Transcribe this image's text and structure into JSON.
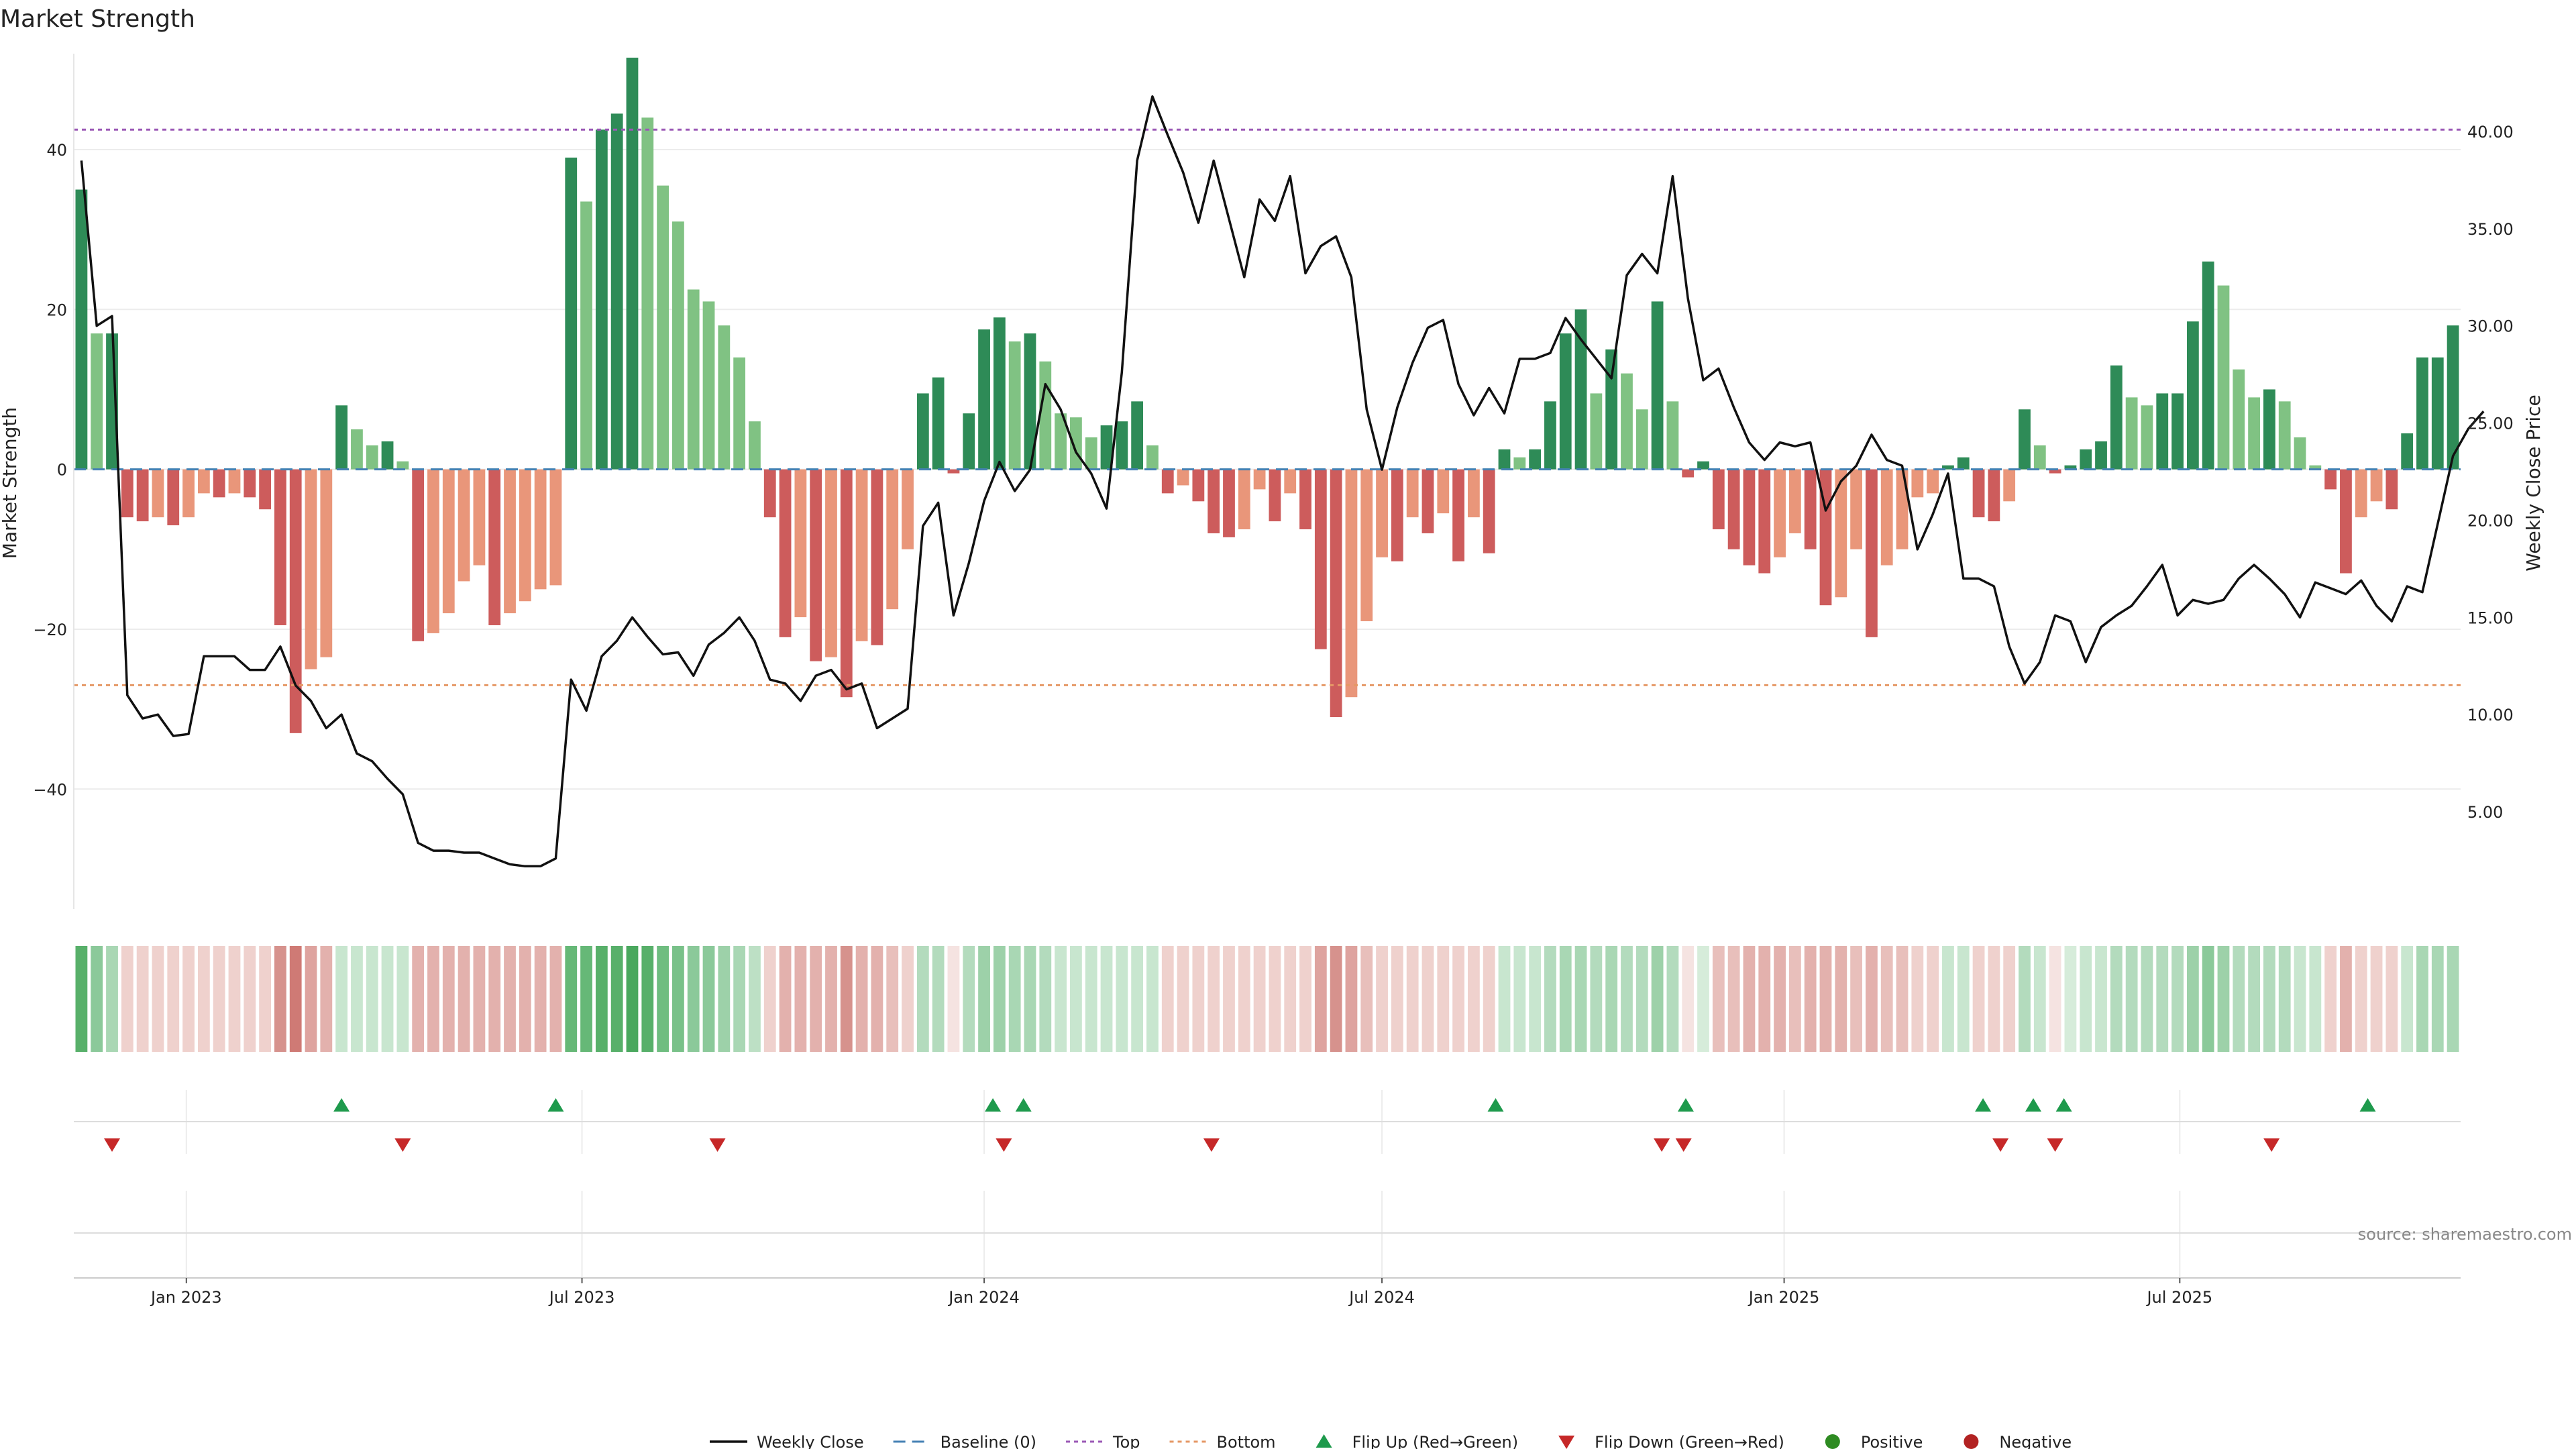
{
  "chart_data": {
    "type": "bar",
    "title": "Market Strength",
    "ylabel_left": "Market Strength",
    "ylabel_right": "Weekly Close Price",
    "source": "source: sharemaestro.com",
    "start_date": "2022-11-14",
    "step_days": 7,
    "ylim_left": [
      -55,
      52
    ],
    "ylim_right": [
      0,
      44
    ],
    "left_ticks": [
      40,
      20,
      0,
      -20,
      -40
    ],
    "left_tick_labels": [
      "40",
      "20",
      "0",
      "−20",
      "−40"
    ],
    "right_ticks": [
      40,
      35,
      30,
      25,
      20,
      15,
      10,
      5
    ],
    "right_tick_labels": [
      "40.00",
      "35.00",
      "30.00",
      "25.00",
      "20.00",
      "15.00",
      "10.00",
      "5.00"
    ],
    "x_ticks": [
      {
        "date": "2023-01-01",
        "label": "Jan 2023"
      },
      {
        "date": "2023-07-01",
        "label": "Jul 2023"
      },
      {
        "date": "2024-01-01",
        "label": "Jan 2024"
      },
      {
        "date": "2024-07-01",
        "label": "Jul 2024"
      },
      {
        "date": "2025-01-01",
        "label": "Jan 2025"
      },
      {
        "date": "2025-07-01",
        "label": "Jul 2025"
      }
    ],
    "top_level": 42.5,
    "bottom_level": -27,
    "strength": [
      35,
      17,
      17,
      -6,
      -6.5,
      -6,
      -7,
      -6,
      -3,
      -3.5,
      -3,
      -3.5,
      -5,
      -19.5,
      -33,
      -25,
      -23.5,
      8,
      5,
      3,
      3.5,
      1,
      -21.5,
      -20.5,
      -18,
      -14,
      -12,
      -19.5,
      -18,
      -16.5,
      -15,
      -14.5,
      39,
      33.5,
      42.5,
      44.5,
      51.5,
      44,
      35.5,
      31,
      22.5,
      21,
      18,
      14,
      6,
      -6,
      -21,
      -18.5,
      -24,
      -23.5,
      -28.5,
      -21.5,
      -22,
      -17.5,
      -10,
      9.5,
      11.5,
      -0.5,
      7,
      17.5,
      19,
      16,
      17,
      13.5,
      7,
      6.5,
      4,
      5.5,
      6,
      8.5,
      3,
      -3,
      -2,
      -4,
      -8,
      -8.5,
      -7.5,
      -2.5,
      -6.5,
      -3,
      -7.5,
      -22.5,
      -31,
      -28.5,
      -19,
      -11,
      -11.5,
      -6,
      -8,
      -5.5,
      -11.5,
      -6,
      -10.5,
      2.5,
      1.5,
      2.5,
      8.5,
      17,
      20,
      9.5,
      15,
      12,
      7.5,
      21,
      8.5,
      -1,
      1,
      -7.5,
      -10,
      -12,
      -13,
      -11,
      -8,
      -10,
      -17,
      -16,
      -10,
      -21,
      -12,
      -10,
      -3.5,
      -3,
      0.5,
      1.5,
      -6,
      -6.5,
      -4,
      7.5,
      3,
      -0.5,
      0.5,
      2.5,
      3.5,
      13,
      9,
      8,
      9.5,
      9.5,
      18.5,
      26,
      23,
      12.5,
      9,
      10,
      8.5,
      4,
      0.5,
      -2.5,
      -13,
      -6,
      -4,
      -5,
      4.5,
      14,
      14,
      18
    ],
    "close": [
      38.5,
      30,
      30.5,
      11,
      9.8,
      10,
      8.9,
      9,
      13,
      13,
      13,
      12.3,
      12.3,
      13.5,
      11.5,
      10.7,
      9.3,
      10,
      8,
      7.6,
      6.7,
      5.9,
      3.4,
      3,
      3,
      2.9,
      2.9,
      2.6,
      2.3,
      2.2,
      2.2,
      2.6,
      11.8,
      10.2,
      13,
      13.8,
      15,
      14,
      13.1,
      13.2,
      12,
      13.6,
      14.2,
      15,
      13.8,
      11.8,
      11.6,
      10.7,
      12,
      12.3,
      11.3,
      11.6,
      9.3,
      9.8,
      10.3,
      19.7,
      20.9,
      15.1,
      17.8,
      21,
      23,
      21.5,
      22.6,
      27,
      25.7,
      23.5,
      22.4,
      20.6,
      27.6,
      38.5,
      41.8,
      39.8,
      37.9,
      35.3,
      38.5,
      35.5,
      32.5,
      36.5,
      35.4,
      37.7,
      32.7,
      34.1,
      34.6,
      32.5,
      25.7,
      22.6,
      25.8,
      28.1,
      29.9,
      30.3,
      27,
      25.4,
      26.8,
      25.5,
      28.3,
      28.3,
      28.6,
      30.4,
      29.3,
      28.3,
      27.3,
      32.6,
      33.7,
      32.7,
      37.7,
      31.4,
      27.2,
      27.8,
      25.8,
      24,
      23.1,
      24,
      23.8,
      24,
      20.5,
      22,
      22.8,
      24.4,
      23.1,
      22.8,
      18.5,
      20.3,
      22.4,
      17,
      17,
      16.6,
      13.5,
      11.6,
      12.7,
      15.1,
      14.8,
      12.7,
      14.5,
      15.1,
      15.6,
      16.6,
      17.7,
      15.1,
      15.9,
      15.7,
      15.9,
      17,
      17.7,
      17,
      16.2,
      15,
      16.8,
      16.5,
      16.2,
      16.9,
      15.6,
      14.8,
      16.6,
      16.3,
      19.8,
      23.3,
      24.7,
      25.6
    ],
    "flip_up_dates": [
      "2023-03-13",
      "2023-06-19",
      "2024-01-05",
      "2024-01-19",
      "2024-08-22",
      "2024-11-17",
      "2025-04-02",
      "2025-04-25",
      "2025-05-09",
      "2025-09-25"
    ],
    "flip_down_dates": [
      "2022-11-28",
      "2023-04-10",
      "2023-09-01",
      "2024-01-10",
      "2024-04-14",
      "2024-11-06",
      "2024-11-16",
      "2025-04-10",
      "2025-05-05",
      "2025-08-12"
    ],
    "strip_colors": [
      "#58b06a",
      "#8bc99a",
      "#a9d7b4",
      "#efd1cd",
      "#efd1cd",
      "#efd1cd",
      "#efd1cd",
      "#efd1cd",
      "#efd1cd",
      "#efd1cd",
      "#efd1cd",
      "#efd1cd",
      "#efd1cd",
      "#d6928d",
      "#cf7a75",
      "#dea39f",
      "#e3b1ad",
      "#c8e6cf",
      "#c8e6cf",
      "#c8e6cf",
      "#c8e6cf",
      "#c8e6cf",
      "#e3b1ad",
      "#e3b1ad",
      "#e3b1ad",
      "#e3b1ad",
      "#e3b1ad",
      "#e3b1ad",
      "#e3b1ad",
      "#e3b1ad",
      "#e3b1ad",
      "#e3b1ad",
      "#66b877",
      "#66b877",
      "#58b06a",
      "#58b06a",
      "#4aa85e",
      "#58b06a",
      "#6fbd80",
      "#79c189",
      "#8bc99a",
      "#8bc99a",
      "#9dd1a9",
      "#a9d7b4",
      "#bde0c5",
      "#efd1cd",
      "#e3b1ad",
      "#e3b1ad",
      "#e3b1ad",
      "#e3b1ad",
      "#d6928d",
      "#e3b1ad",
      "#e3b1ad",
      "#e8bfbb",
      "#efd1cd",
      "#b3dbbd",
      "#b3dbbd",
      "#f5e3e1",
      "#b3dbbd",
      "#9dd1a9",
      "#9dd1a9",
      "#a9d7b4",
      "#a9d7b4",
      "#b3dbbd",
      "#c8e6cf",
      "#c8e6cf",
      "#c8e6cf",
      "#c8e6cf",
      "#c8e6cf",
      "#c8e6cf",
      "#c8e6cf",
      "#efd1cd",
      "#efd1cd",
      "#efd1cd",
      "#efd1cd",
      "#efd1cd",
      "#efd1cd",
      "#efd1cd",
      "#efd1cd",
      "#efd1cd",
      "#efd1cd",
      "#dea39f",
      "#d6928d",
      "#dea39f",
      "#e8bfbb",
      "#efd1cd",
      "#efd1cd",
      "#efd1cd",
      "#efd1cd",
      "#efd1cd",
      "#efd1cd",
      "#efd1cd",
      "#efd1cd",
      "#c8e6cf",
      "#c8e6cf",
      "#c8e6cf",
      "#b3dbbd",
      "#a9d7b4",
      "#a9d7b4",
      "#b3dbbd",
      "#a9d7b4",
      "#b3dbbd",
      "#b3dbbd",
      "#9dd1a9",
      "#b3dbbd",
      "#f5e3e1",
      "#d6ecda",
      "#e8bfbb",
      "#e8bfbb",
      "#e3b1ad",
      "#e3b1ad",
      "#e3b1ad",
      "#e8bfbb",
      "#e3b1ad",
      "#e3b1ad",
      "#e3b1ad",
      "#e8bfbb",
      "#e3b1ad",
      "#e8bfbb",
      "#e8bfbb",
      "#efd1cd",
      "#efd1cd",
      "#c8e6cf",
      "#c8e6cf",
      "#efd1cd",
      "#efd1cd",
      "#efd1cd",
      "#b3dbbd",
      "#c8e6cf",
      "#f5e3e1",
      "#d6ecda",
      "#c8e6cf",
      "#c8e6cf",
      "#b3dbbd",
      "#b3dbbd",
      "#b3dbbd",
      "#b3dbbd",
      "#b3dbbd",
      "#9dd1a9",
      "#8bc99a",
      "#9dd1a9",
      "#b3dbbd",
      "#b3dbbd",
      "#b3dbbd",
      "#b3dbbd",
      "#c8e6cf",
      "#c8e6cf",
      "#efd1cd",
      "#e3b1ad",
      "#efd1cd",
      "#efd1cd",
      "#efd1cd",
      "#c8e6cf",
      "#a9d7b4",
      "#a9d7b4",
      "#a9d7b4"
    ],
    "colors": {
      "pos_strong": "#2e8b57",
      "pos_weak": "#80c283",
      "neg_strong": "#cd5c5c",
      "neg_weak": "#e9967a",
      "close_line": "#111111",
      "baseline": "#4682b4",
      "top": "#9b59b6",
      "bottom": "#e59866",
      "flip_up": "#1e9a4c",
      "flip_down": "#c62828",
      "positive_dot": "#2e8b22",
      "negative_dot": "#b22222",
      "grid": "#ececec"
    },
    "legend": [
      {
        "key": "close",
        "label": "Weekly Close"
      },
      {
        "key": "baseline",
        "label": "Baseline (0)"
      },
      {
        "key": "top",
        "label": "Top"
      },
      {
        "key": "bottom",
        "label": "Bottom"
      },
      {
        "key": "flip_up",
        "label": "Flip Up (Red→Green)"
      },
      {
        "key": "flip_down",
        "label": "Flip Down (Green→Red)"
      },
      {
        "key": "positive",
        "label": "Positive"
      },
      {
        "key": "negative",
        "label": "Negative"
      }
    ]
  }
}
